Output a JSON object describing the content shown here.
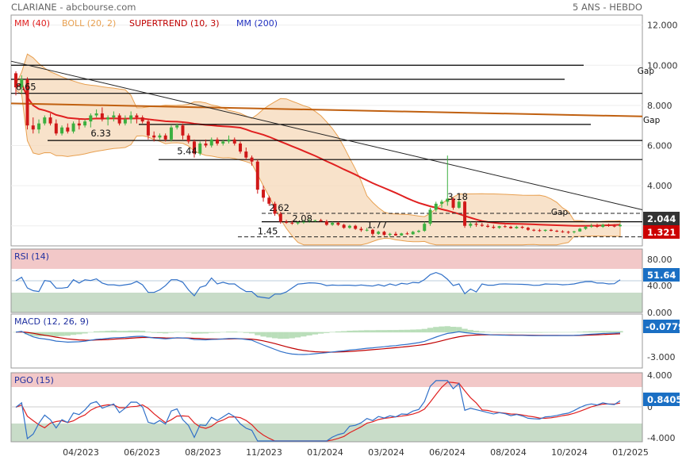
{
  "header": {
    "left": "CLARIANE - abcbourse.com",
    "right": "5 ANS - HEBDO"
  },
  "chart_data": {
    "type": "candlestick",
    "x_ticks": [
      "04/2023",
      "06/2023",
      "08/2023",
      "11/2023",
      "01/2024",
      "03/2024",
      "06/2024",
      "08/2024",
      "10/2024",
      "01/2025"
    ],
    "main": {
      "legend": [
        {
          "name": "MM (40)",
          "color": "#e02020"
        },
        {
          "name": "BOLL (20, 2)",
          "color": "#e8a050"
        },
        {
          "name": "SUPERTREND (10, 3)",
          "color": "#c00000"
        },
        {
          "name": "MM (200)",
          "color": "#2030c0"
        }
      ],
      "y_ticks": [
        "12.000",
        "10.000",
        "8.000",
        "6.000",
        "4.000",
        "2.000"
      ],
      "ylim": [
        1.0,
        12.5
      ],
      "last_close": "2.044",
      "last_close_color": "#333333",
      "supertrend_last": "1.321",
      "supertrend_color": "#cc0000",
      "annotations": [
        {
          "text": "8.65",
          "x": 0,
          "y": 8.65
        },
        {
          "text": "6.33",
          "x": 13,
          "y": 6.33
        },
        {
          "text": "5.44",
          "x": 28,
          "y": 5.44
        },
        {
          "text": "2.62",
          "x": 44,
          "y": 2.62
        },
        {
          "text": "2.08",
          "x": 48,
          "y": 2.08
        },
        {
          "text": "1.77",
          "x": 61,
          "y": 1.77
        },
        {
          "text": "1.45",
          "x": 42,
          "y": 1.45
        },
        {
          "text": "3.18",
          "x": 75,
          "y": 3.18
        }
      ],
      "gap_labels": [
        {
          "text": "Gap",
          "x": 108,
          "y": 9.45
        },
        {
          "text": "Gap",
          "x": 109,
          "y": 7.0
        },
        {
          "text": "Gap",
          "x": 93,
          "y": 2.43
        }
      ],
      "candles": [
        [
          9.6,
          9.7,
          8.5,
          8.9
        ],
        [
          8.9,
          9.5,
          8.6,
          9.3
        ],
        [
          9.3,
          9.4,
          6.8,
          7.0
        ],
        [
          7.0,
          7.4,
          6.6,
          6.8
        ],
        [
          6.8,
          7.3,
          6.6,
          7.1
        ],
        [
          7.1,
          7.5,
          7.0,
          7.4
        ],
        [
          7.4,
          7.6,
          7.0,
          7.1
        ],
        [
          7.1,
          7.3,
          6.5,
          6.6
        ],
        [
          6.6,
          7.0,
          6.5,
          6.9
        ],
        [
          6.9,
          7.1,
          6.6,
          6.7
        ],
        [
          6.7,
          7.2,
          6.6,
          7.1
        ],
        [
          7.1,
          7.3,
          6.8,
          7.0
        ],
        [
          7.0,
          7.3,
          6.9,
          7.2
        ],
        [
          7.2,
          7.6,
          6.9,
          7.5
        ],
        [
          7.5,
          7.8,
          7.4,
          7.6
        ],
        [
          7.6,
          7.9,
          7.2,
          7.3
        ],
        [
          7.3,
          7.5,
          7.0,
          7.4
        ],
        [
          7.4,
          7.7,
          7.2,
          7.5
        ],
        [
          7.5,
          7.6,
          7.0,
          7.1
        ],
        [
          7.1,
          7.5,
          7.0,
          7.3
        ],
        [
          7.3,
          7.7,
          7.1,
          7.5
        ],
        [
          7.5,
          7.6,
          7.1,
          7.4
        ],
        [
          7.4,
          7.5,
          7.1,
          7.2
        ],
        [
          7.2,
          7.3,
          6.3,
          6.5
        ],
        [
          6.5,
          6.7,
          6.2,
          6.4
        ],
        [
          6.4,
          6.6,
          6.3,
          6.5
        ],
        [
          6.5,
          6.6,
          6.2,
          6.3
        ],
        [
          6.3,
          7.0,
          6.2,
          6.9
        ],
        [
          6.9,
          7.1,
          6.8,
          7.0
        ],
        [
          7.0,
          7.1,
          6.3,
          6.5
        ],
        [
          6.5,
          6.6,
          6.1,
          6.2
        ],
        [
          6.2,
          6.3,
          5.4,
          5.6
        ],
        [
          5.6,
          6.2,
          5.5,
          6.1
        ],
        [
          6.1,
          6.3,
          5.9,
          6.0
        ],
        [
          6.0,
          6.4,
          5.9,
          6.3
        ],
        [
          6.3,
          6.4,
          6.0,
          6.1
        ],
        [
          6.1,
          6.3,
          6.0,
          6.2
        ],
        [
          6.2,
          6.5,
          6.1,
          6.3
        ],
        [
          6.3,
          6.4,
          6.0,
          6.1
        ],
        [
          6.1,
          6.2,
          5.6,
          5.7
        ],
        [
          5.7,
          5.9,
          5.3,
          5.4
        ],
        [
          5.4,
          5.5,
          5.0,
          5.2
        ],
        [
          5.2,
          5.3,
          3.6,
          3.8
        ],
        [
          3.8,
          4.0,
          3.2,
          3.4
        ],
        [
          3.4,
          3.5,
          3.0,
          3.1
        ],
        [
          3.1,
          3.2,
          2.5,
          2.6
        ],
        [
          2.6,
          2.7,
          2.1,
          2.2
        ],
        [
          2.2,
          2.3,
          2.1,
          2.15
        ],
        [
          2.15,
          2.25,
          2.05,
          2.12
        ],
        [
          2.12,
          2.2,
          2.05,
          2.18
        ],
        [
          2.18,
          2.3,
          2.1,
          2.2
        ],
        [
          2.2,
          2.35,
          2.15,
          2.25
        ],
        [
          2.25,
          2.3,
          2.2,
          2.28
        ],
        [
          2.28,
          2.35,
          2.2,
          2.22
        ],
        [
          2.22,
          2.3,
          2.0,
          2.05
        ],
        [
          2.05,
          2.2,
          2.0,
          2.15
        ],
        [
          2.15,
          2.2,
          2.0,
          2.05
        ],
        [
          2.05,
          2.1,
          1.85,
          1.9
        ],
        [
          1.9,
          2.05,
          1.85,
          2.0
        ],
        [
          2.0,
          2.05,
          1.8,
          1.85
        ],
        [
          1.85,
          1.95,
          1.7,
          1.78
        ],
        [
          1.78,
          1.9,
          1.72,
          1.8
        ],
        [
          1.8,
          1.85,
          1.5,
          1.6
        ],
        [
          1.6,
          1.75,
          1.55,
          1.7
        ],
        [
          1.7,
          1.75,
          1.5,
          1.55
        ],
        [
          1.55,
          1.65,
          1.45,
          1.6
        ],
        [
          1.6,
          1.7,
          1.5,
          1.52
        ],
        [
          1.52,
          1.65,
          1.5,
          1.62
        ],
        [
          1.62,
          1.7,
          1.55,
          1.58
        ],
        [
          1.58,
          1.75,
          1.55,
          1.7
        ],
        [
          1.7,
          1.8,
          1.65,
          1.75
        ],
        [
          1.75,
          2.2,
          1.7,
          2.1
        ],
        [
          2.1,
          2.9,
          2.0,
          2.8
        ],
        [
          2.8,
          3.2,
          2.7,
          3.1
        ],
        [
          3.1,
          3.3,
          2.9,
          3.2
        ],
        [
          3.2,
          5.5,
          3.0,
          3.35
        ],
        [
          3.35,
          3.4,
          2.8,
          2.9
        ],
        [
          2.9,
          3.3,
          2.85,
          3.2
        ],
        [
          3.2,
          3.25,
          1.9,
          2.0
        ],
        [
          2.0,
          2.2,
          1.9,
          2.1
        ],
        [
          2.1,
          2.2,
          1.95,
          2.05
        ],
        [
          2.05,
          2.15,
          1.95,
          2.0
        ],
        [
          2.0,
          2.1,
          1.9,
          1.95
        ],
        [
          1.95,
          2.05,
          1.85,
          1.9
        ],
        [
          1.9,
          2.0,
          1.85,
          1.98
        ],
        [
          1.98,
          2.05,
          1.9,
          1.95
        ],
        [
          1.95,
          2.0,
          1.85,
          1.88
        ],
        [
          1.88,
          2.0,
          1.85,
          1.95
        ],
        [
          1.95,
          2.0,
          1.85,
          1.9
        ],
        [
          1.9,
          1.95,
          1.75,
          1.8
        ],
        [
          1.8,
          1.85,
          1.72,
          1.78
        ],
        [
          1.78,
          1.85,
          1.7,
          1.75
        ],
        [
          1.75,
          1.82,
          1.7,
          1.8
        ],
        [
          1.8,
          1.85,
          1.72,
          1.75
        ],
        [
          1.75,
          1.8,
          1.68,
          1.72
        ],
        [
          1.72,
          1.78,
          1.65,
          1.7
        ],
        [
          1.7,
          1.75,
          1.6,
          1.68
        ],
        [
          1.68,
          1.75,
          1.62,
          1.72
        ],
        [
          1.72,
          1.9,
          1.7,
          1.85
        ],
        [
          1.85,
          2.0,
          1.8,
          1.95
        ],
        [
          1.95,
          2.1,
          1.9,
          2.0
        ],
        [
          2.0,
          2.1,
          1.9,
          1.95
        ],
        [
          1.95,
          2.1,
          1.9,
          2.05
        ],
        [
          2.05,
          2.1,
          1.95,
          2.0
        ],
        [
          2.0,
          2.08,
          1.92,
          1.98
        ],
        [
          1.98,
          2.1,
          1.95,
          2.04
        ]
      ]
    },
    "rsi": {
      "label": "RSI (14)",
      "y_ticks": [
        "80.00",
        "40.00",
        "0.000"
      ],
      "last": "51.64",
      "color": "#3070c8"
    },
    "macd": {
      "label": "MACD (12, 26, 9)",
      "y_ticks": [
        "-3.000"
      ],
      "last": "-0.0779",
      "color": "#3070c8",
      "signal_color": "#c00000"
    },
    "pgo": {
      "label": "PGO (15)",
      "y_ticks": [
        "4.000",
        "0",
        "-4.000"
      ],
      "last": "0.8405",
      "color": "#3070c8",
      "signal_color": "#e02020"
    }
  }
}
